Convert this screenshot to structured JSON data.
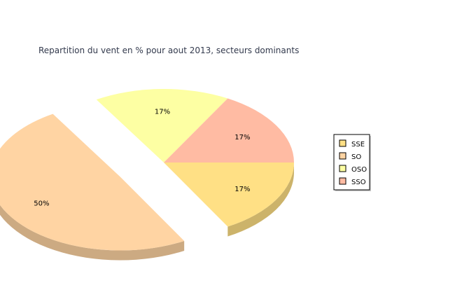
{
  "chart_data": {
    "type": "pie",
    "title": "Repartition du vent en % pour aout 2013, secteurs dominants",
    "style": "3d",
    "legend_position": "right",
    "slices": [
      {
        "name": "SSE",
        "value": 17,
        "label": "17%",
        "color": "#ffe085",
        "exploded": false
      },
      {
        "name": "SO",
        "value": 50,
        "label": "50%",
        "color": "#ffd4a3",
        "exploded": true
      },
      {
        "name": "OSO",
        "value": 17,
        "label": "17%",
        "color": "#fdffa3",
        "exploded": false
      },
      {
        "name": "SSO",
        "value": 17,
        "label": "17%",
        "color": "#ffbba3",
        "exploded": false
      }
    ]
  }
}
